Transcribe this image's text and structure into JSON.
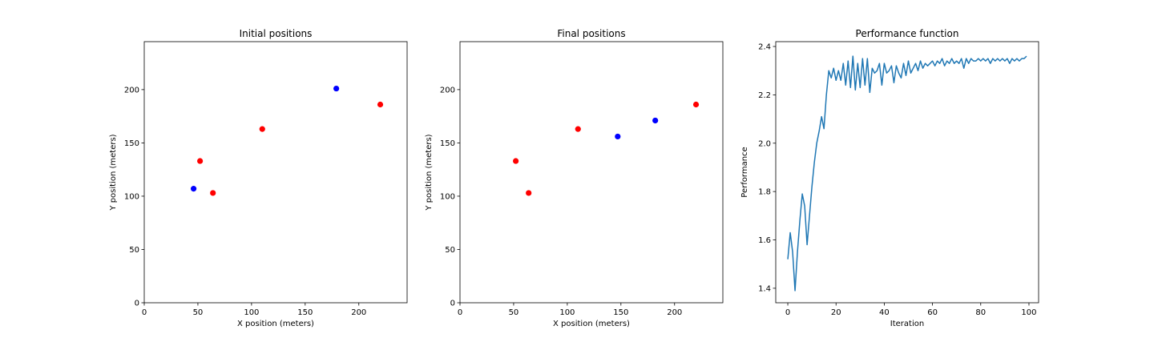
{
  "chart_data": [
    {
      "type": "scatter",
      "title": "Initial positions",
      "xlabel": "X position (meters)",
      "ylabel": "Y position (meters)",
      "xlim": [
        0,
        245
      ],
      "ylim": [
        0,
        245
      ],
      "xticks": [
        0,
        50,
        100,
        150,
        200
      ],
      "yticks": [
        0,
        50,
        100,
        150,
        200
      ],
      "series": [
        {
          "name": "red",
          "color": "#ff0000",
          "points": [
            [
              52,
              133
            ],
            [
              64,
              103
            ],
            [
              110,
              163
            ],
            [
              220,
              186
            ]
          ]
        },
        {
          "name": "blue",
          "color": "#0000ff",
          "points": [
            [
              46,
              107
            ],
            [
              179,
              201
            ]
          ]
        }
      ]
    },
    {
      "type": "scatter",
      "title": "Final positions",
      "xlabel": "X position (meters)",
      "ylabel": "Y position (meters)",
      "xlim": [
        0,
        245
      ],
      "ylim": [
        0,
        245
      ],
      "xticks": [
        0,
        50,
        100,
        150,
        200
      ],
      "yticks": [
        0,
        50,
        100,
        150,
        200
      ],
      "series": [
        {
          "name": "red",
          "color": "#ff0000",
          "points": [
            [
              52,
              133
            ],
            [
              64,
              103
            ],
            [
              110,
              163
            ],
            [
              220,
              186
            ]
          ]
        },
        {
          "name": "blue",
          "color": "#0000ff",
          "points": [
            [
              147,
              156
            ],
            [
              182,
              171
            ]
          ]
        }
      ]
    },
    {
      "type": "line",
      "title": "Performance function",
      "xlabel": "Iteration",
      "ylabel": "Performance",
      "xlim": [
        -5,
        104
      ],
      "ylim": [
        1.34,
        2.42
      ],
      "xticks": [
        0,
        20,
        40,
        60,
        80,
        100
      ],
      "yticks": [
        1.4,
        1.6,
        1.8,
        2.0,
        2.2,
        2.4
      ],
      "ytick_labels": [
        "1.4",
        "1.6",
        "1.8",
        "2.0",
        "2.2",
        "2.4"
      ],
      "series": [
        {
          "name": "performance",
          "color": "#1f77b4",
          "x": [
            0,
            1,
            2,
            3,
            4,
            5,
            6,
            7,
            8,
            9,
            10,
            11,
            12,
            13,
            14,
            15,
            16,
            17,
            18,
            19,
            20,
            21,
            22,
            23,
            24,
            25,
            26,
            27,
            28,
            29,
            30,
            31,
            32,
            33,
            34,
            35,
            36,
            37,
            38,
            39,
            40,
            41,
            42,
            43,
            44,
            45,
            46,
            47,
            48,
            49,
            50,
            51,
            52,
            53,
            54,
            55,
            56,
            57,
            58,
            59,
            60,
            61,
            62,
            63,
            64,
            65,
            66,
            67,
            68,
            69,
            70,
            71,
            72,
            73,
            74,
            75,
            76,
            77,
            78,
            79,
            80,
            81,
            82,
            83,
            84,
            85,
            86,
            87,
            88,
            89,
            90,
            91,
            92,
            93,
            94,
            95,
            96,
            97,
            98,
            99
          ],
          "y": [
            1.52,
            1.63,
            1.55,
            1.39,
            1.55,
            1.68,
            1.79,
            1.74,
            1.58,
            1.7,
            1.82,
            1.92,
            2.0,
            2.05,
            2.11,
            2.06,
            2.2,
            2.3,
            2.27,
            2.31,
            2.26,
            2.3,
            2.26,
            2.33,
            2.24,
            2.34,
            2.23,
            2.36,
            2.22,
            2.33,
            2.23,
            2.35,
            2.24,
            2.35,
            2.21,
            2.31,
            2.29,
            2.3,
            2.33,
            2.24,
            2.33,
            2.29,
            2.3,
            2.32,
            2.25,
            2.32,
            2.29,
            2.27,
            2.33,
            2.28,
            2.34,
            2.29,
            2.31,
            2.33,
            2.3,
            2.34,
            2.31,
            2.33,
            2.32,
            2.33,
            2.34,
            2.32,
            2.34,
            2.33,
            2.35,
            2.32,
            2.34,
            2.33,
            2.35,
            2.33,
            2.34,
            2.33,
            2.35,
            2.31,
            2.35,
            2.33,
            2.35,
            2.34,
            2.34,
            2.35,
            2.34,
            2.35,
            2.34,
            2.35,
            2.33,
            2.35,
            2.34,
            2.35,
            2.34,
            2.35,
            2.34,
            2.35,
            2.33,
            2.35,
            2.34,
            2.35,
            2.34,
            2.35,
            2.35,
            2.36
          ]
        }
      ]
    }
  ]
}
